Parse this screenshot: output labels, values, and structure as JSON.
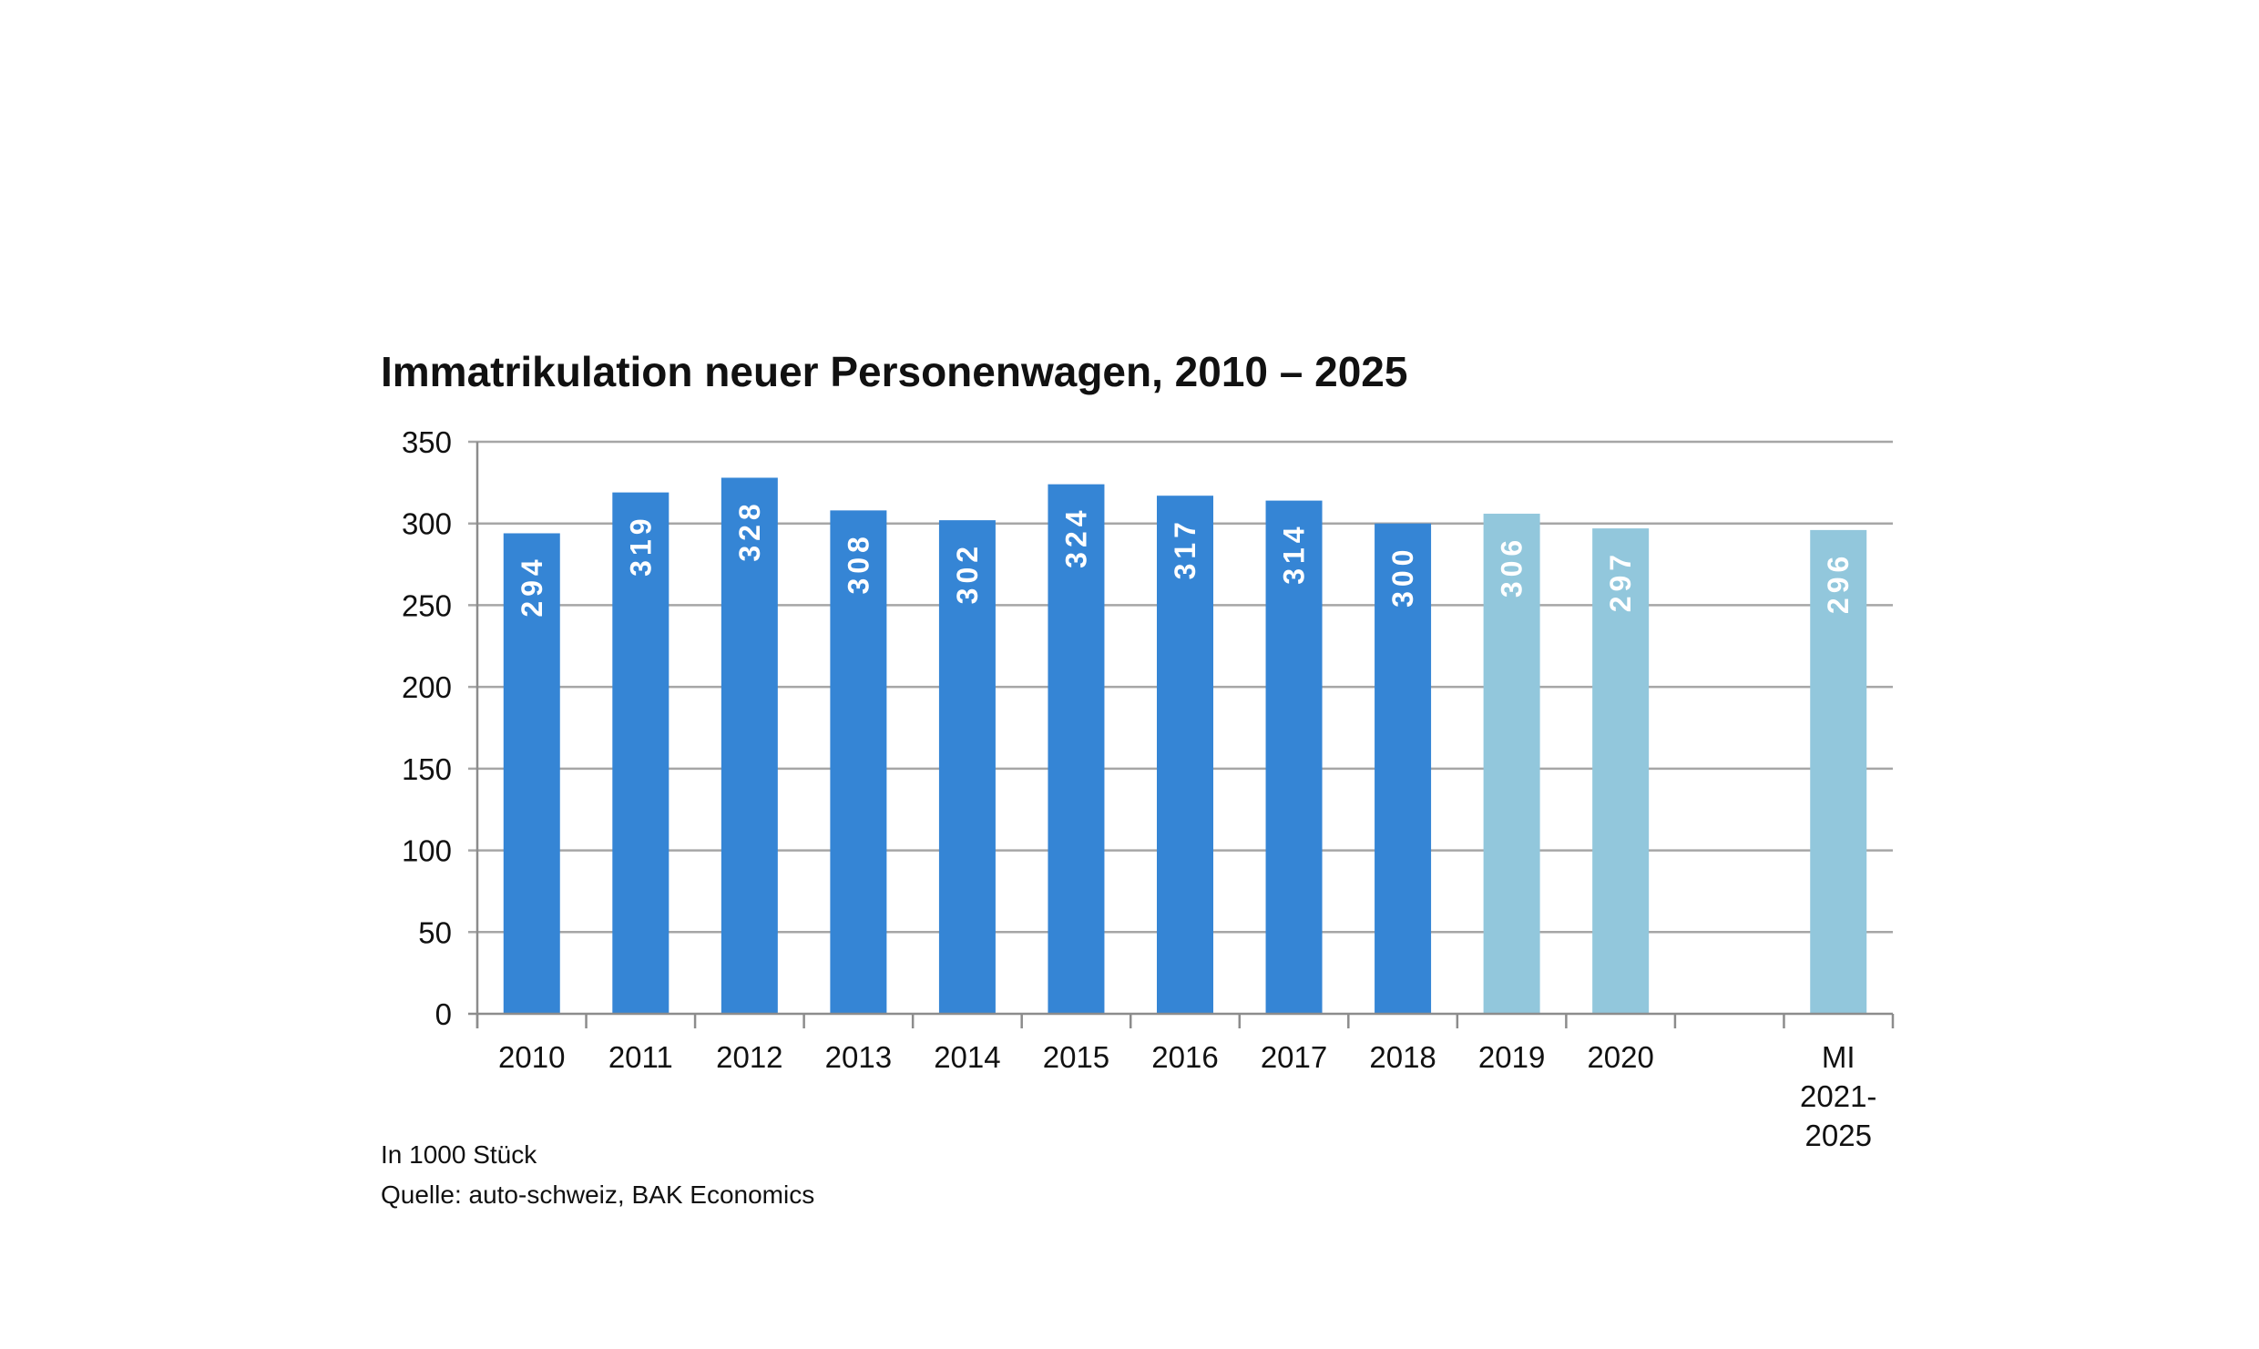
{
  "chart_data": {
    "type": "bar",
    "title": "Immatrikulation neuer Personenwagen, 2010 – 2025",
    "categories": [
      [
        "2010"
      ],
      [
        "2011"
      ],
      [
        "2012"
      ],
      [
        "2013"
      ],
      [
        "2014"
      ],
      [
        "2015"
      ],
      [
        "2016"
      ],
      [
        "2017"
      ],
      [
        "2018"
      ],
      [
        "2019"
      ],
      [
        "2020"
      ],
      [],
      [
        "MI",
        "2021-",
        "2025"
      ]
    ],
    "values": [
      294,
      319,
      328,
      308,
      302,
      324,
      317,
      314,
      300,
      306,
      297,
      null,
      296
    ],
    "forecast": [
      false,
      false,
      false,
      false,
      false,
      false,
      false,
      false,
      false,
      true,
      true,
      false,
      true
    ],
    "ylim": [
      0,
      350
    ],
    "yticks": [
      0,
      50,
      100,
      150,
      200,
      250,
      300,
      350
    ],
    "grid": true,
    "xlabel": "",
    "ylabel": ""
  },
  "colors": {
    "actual": "#3585d5",
    "forecast": "#92c7dc",
    "grid": "#a6a6a6",
    "axis": "#8c8c8c"
  },
  "notes": {
    "unit": "In 1000 Stück",
    "source": "Quelle: auto-schweiz, BAK Economics"
  }
}
